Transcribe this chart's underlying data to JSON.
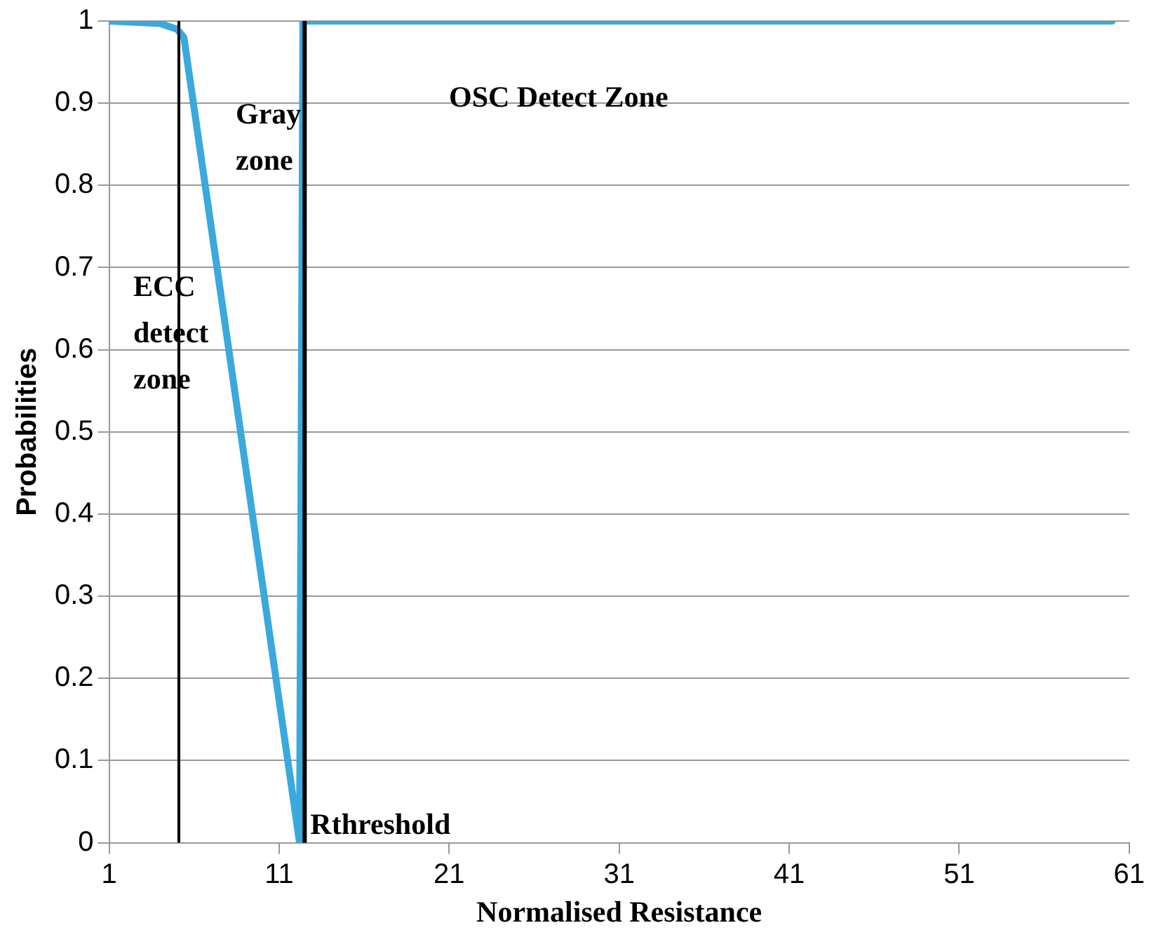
{
  "chart_data": {
    "type": "line",
    "xlabel": "Normalised Resistance",
    "ylabel": "Probabilities",
    "x": [
      1,
      4,
      5,
      5.4,
      12.2,
      12.4,
      60
    ],
    "series": [
      {
        "color": "#3aa9dc",
        "values": [
          1,
          0.997,
          0.99,
          0.98,
          0,
          1,
          1
        ]
      }
    ],
    "xlim": [
      1,
      61
    ],
    "xticks": [
      1,
      11,
      21,
      31,
      41,
      51,
      61
    ],
    "ylim": [
      0,
      1
    ],
    "yticks": [
      0,
      0.1,
      0.2,
      0.3,
      0.4,
      0.5,
      0.6,
      0.7,
      0.8,
      0.9,
      1
    ],
    "grid": "y",
    "legend": false,
    "marker": "none",
    "ref_lines": [
      {
        "axis": "x",
        "value": 5.1,
        "color": "#000000"
      },
      {
        "axis": "x",
        "value": 12.5,
        "label": "Rthreshold",
        "color": "#000000"
      }
    ],
    "annotations": [
      "ECC detect zone",
      "Gray zone",
      "OSC Detect Zone"
    ]
  }
}
